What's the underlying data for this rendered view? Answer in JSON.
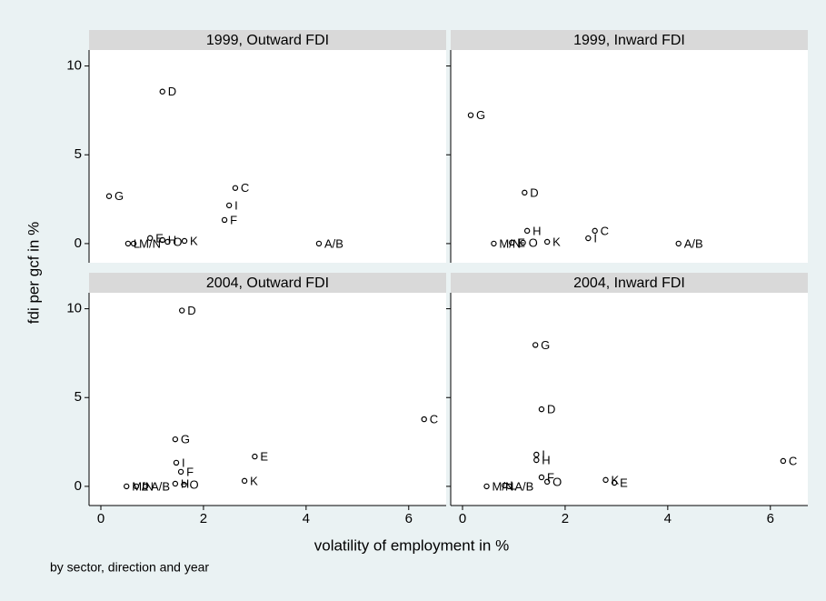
{
  "y_label": "fdi per gcf in %",
  "x_label": "volatility of employment in %",
  "note": "by sector, direction and year",
  "chart_data": [
    {
      "type": "scatter",
      "title": "1999, Outward FDI",
      "xlim": [
        -0.23,
        6.73
      ],
      "ylim": [
        -1.08,
        10.9
      ],
      "xticks": [
        0,
        2,
        4,
        6
      ],
      "yticks": [
        0,
        5,
        10
      ],
      "labels": [
        "D",
        "G",
        "C",
        "I",
        "F",
        "K",
        "A/B",
        "E",
        "L",
        "M/N",
        "H",
        "O"
      ],
      "x": [
        1.2,
        0.16,
        2.62,
        2.5,
        2.41,
        1.63,
        4.25,
        0.96,
        0.53,
        0.64,
        1.2,
        1.3
      ],
      "values": [
        8.56,
        2.67,
        3.13,
        2.15,
        1.33,
        0.15,
        0,
        0.31,
        0,
        0,
        0.2,
        0.1
      ]
    },
    {
      "type": "scatter",
      "title": "1999, Inward  FDI",
      "xlim": [
        -0.23,
        6.73
      ],
      "ylim": [
        -1.08,
        10.9
      ],
      "xticks": [
        0,
        2,
        4,
        6
      ],
      "yticks": [
        0,
        5,
        10
      ],
      "labels": [
        "G",
        "D",
        "H",
        "C",
        "I",
        "K",
        "O",
        "M/N",
        "E",
        "A/B"
      ],
      "x": [
        0.16,
        1.21,
        1.26,
        2.58,
        2.45,
        1.65,
        1.18,
        0.61,
        0.96,
        4.21
      ],
      "values": [
        7.23,
        2.87,
        0.72,
        0.72,
        0.3,
        0.1,
        0.05,
        0,
        0.05,
        0
      ]
    },
    {
      "type": "scatter",
      "title": "2004, Outward FDI",
      "xlim": [
        -0.23,
        6.73
      ],
      "ylim": [
        -1.08,
        10.9
      ],
      "xticks": [
        0,
        2,
        4,
        6
      ],
      "yticks": [
        0,
        5,
        10
      ],
      "labels": [
        "D",
        "C",
        "G",
        "E",
        "I",
        "F",
        "K",
        "H",
        "O",
        "M/N",
        "L",
        "A/B"
      ],
      "x": [
        1.58,
        6.3,
        1.45,
        3.0,
        1.47,
        1.56,
        2.8,
        1.45,
        1.62,
        0.5,
        0.69,
        0.87
      ],
      "values": [
        9.9,
        3.78,
        2.65,
        1.68,
        1.33,
        0.82,
        0.31,
        0.15,
        0.1,
        0,
        0,
        0
      ]
    },
    {
      "type": "scatter",
      "title": "2004, Inward  FDI",
      "xlim": [
        -0.23,
        6.73
      ],
      "ylim": [
        -1.08,
        10.9
      ],
      "xticks": [
        0,
        2,
        4,
        6
      ],
      "yticks": [
        0,
        5,
        10
      ],
      "labels": [
        "G",
        "D",
        "C",
        "I",
        "H",
        "F",
        "O",
        "K",
        "E",
        "M/N",
        "L",
        "A/B"
      ],
      "x": [
        1.42,
        1.54,
        6.25,
        1.44,
        1.44,
        1.54,
        1.65,
        2.79,
        2.96,
        0.47,
        0.82,
        0.91
      ],
      "values": [
        7.96,
        4.34,
        1.43,
        1.79,
        1.48,
        0.51,
        0.26,
        0.36,
        0.2,
        0,
        0.05,
        0
      ]
    }
  ]
}
